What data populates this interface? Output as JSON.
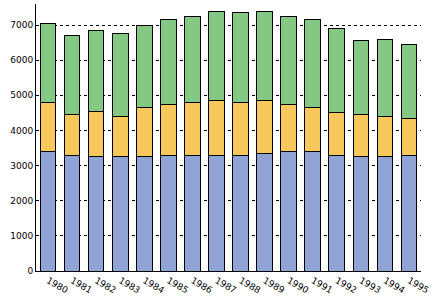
{
  "chart_data": {
    "type": "bar",
    "stacked": true,
    "grid": true,
    "categories": [
      "1980",
      "1981",
      "1982",
      "1983",
      "1984",
      "1985",
      "1986",
      "1987",
      "1988",
      "1989",
      "1990",
      "1991",
      "1992",
      "1993",
      "1994",
      "1995"
    ],
    "series": [
      {
        "color": "#8fa3d4",
        "values": [
          3400,
          3300,
          3250,
          3250,
          3250,
          3300,
          3300,
          3300,
          3300,
          3350,
          3400,
          3400,
          3300,
          3250,
          3250,
          3300
        ]
      },
      {
        "color": "#f7c85c",
        "values": [
          1400,
          1150,
          1300,
          1150,
          1400,
          1450,
          1500,
          1550,
          1500,
          1500,
          1350,
          1250,
          1200,
          1200,
          1150,
          1050
        ]
      },
      {
        "color": "#84c884",
        "values": [
          2250,
          2250,
          2300,
          2350,
          2350,
          2400,
          2450,
          2550,
          2550,
          2550,
          2500,
          2500,
          2400,
          2100,
          2200,
          2100
        ]
      }
    ],
    "ylim": [
      0,
      7600
    ],
    "yticks": [
      0,
      1000,
      2000,
      3000,
      4000,
      5000,
      6000,
      7000
    ]
  }
}
